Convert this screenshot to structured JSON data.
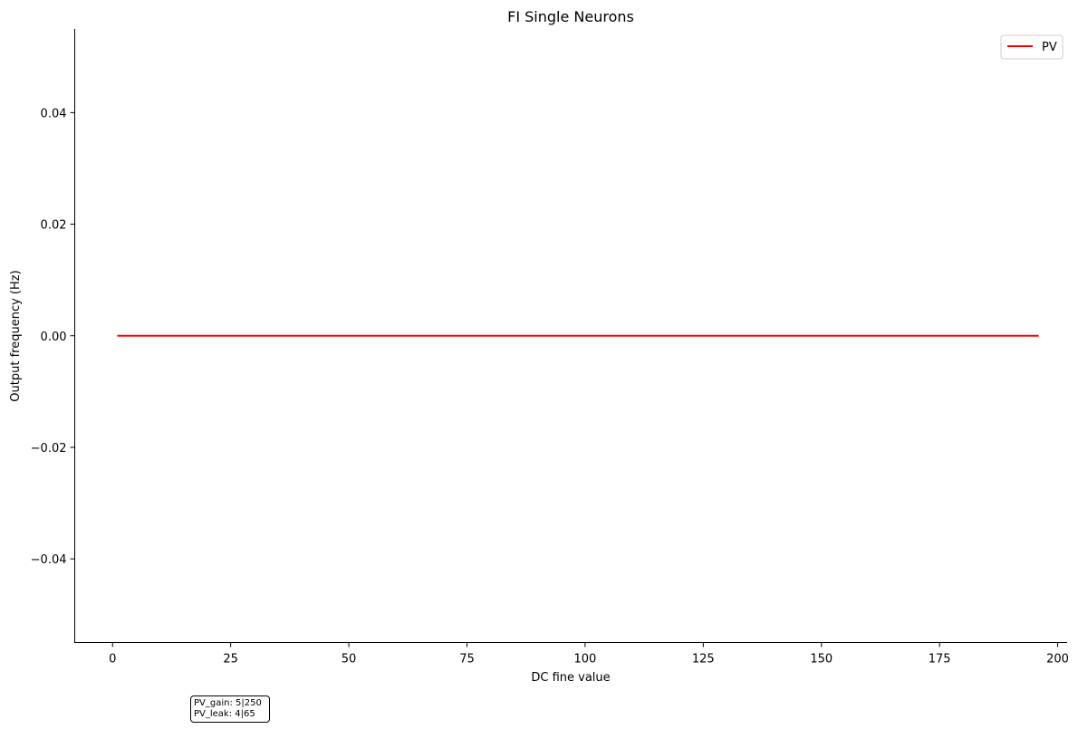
{
  "chart_data": {
    "type": "line",
    "title": "FI Single Neurons",
    "xlabel": "DC fine value",
    "ylabel": "Output frequency (Hz)",
    "xlim": [
      -8,
      202
    ],
    "ylim": [
      -0.055,
      0.055
    ],
    "xticks": [
      0,
      25,
      50,
      75,
      100,
      125,
      150,
      175,
      200
    ],
    "xtick_labels": [
      "0",
      "25",
      "50",
      "75",
      "100",
      "125",
      "150",
      "175",
      "200"
    ],
    "yticks": [
      0.04,
      0.02,
      0.0,
      -0.02,
      -0.04
    ],
    "ytick_labels": [
      "0.04",
      "0.02",
      "0.00",
      "−0.02",
      "−0.04"
    ],
    "grid": false,
    "legend_position": "top-right",
    "series": [
      {
        "name": "PV",
        "color": "#ff0000",
        "x": [
          1,
          196
        ],
        "y": [
          0,
          0
        ]
      }
    ]
  },
  "info_box": {
    "lines": [
      "PV_gain: 5|250",
      "PV_leak: 4|65"
    ]
  }
}
